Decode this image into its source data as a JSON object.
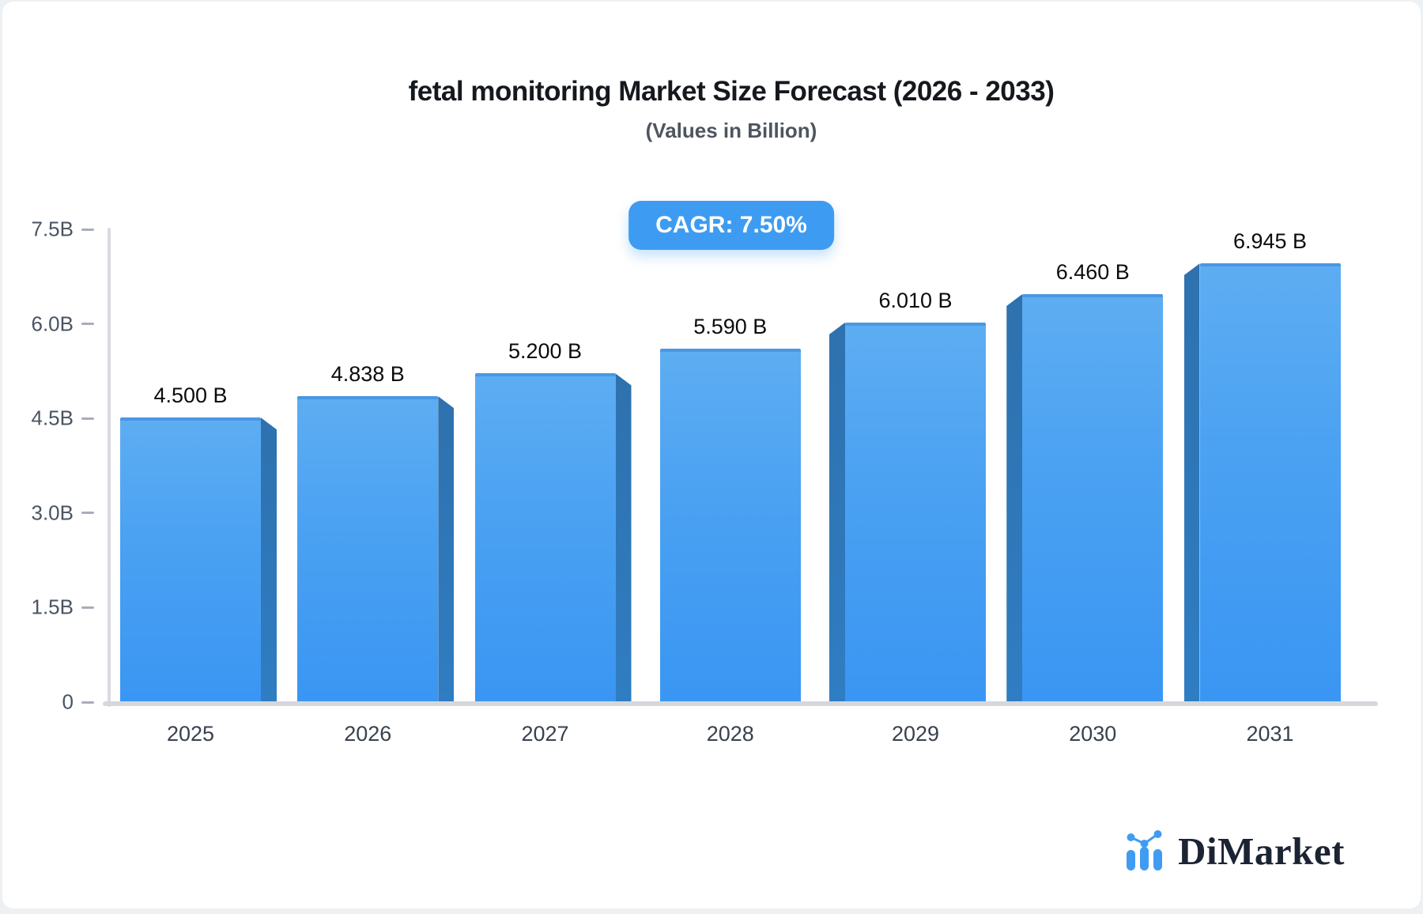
{
  "header": {
    "title": "fetal monitoring Market Size Forecast (2026 - 2033)",
    "subtitle": "(Values in Billion)"
  },
  "badge": {
    "label": "CAGR: 7.50%",
    "color": "#3d9cf1"
  },
  "chart_data": {
    "type": "bar",
    "title": "fetal monitoring Market Size Forecast (2026 - 2033)",
    "subtitle": "(Values in Billion)",
    "cagr_label": "CAGR: 7.50%",
    "categories": [
      "2025",
      "2026",
      "2027",
      "2028",
      "2029",
      "2030",
      "2031"
    ],
    "values": [
      4.5,
      4.838,
      5.2,
      5.59,
      6.01,
      6.46,
      6.945
    ],
    "value_labels": [
      "4.500 B",
      "4.838 B",
      "5.200 B",
      "5.590 B",
      "6.010 B",
      "6.460 B",
      "6.945 B"
    ],
    "unit": "Billion",
    "xlabel": "",
    "ylabel": "",
    "ylim": [
      0,
      7.5
    ],
    "yticks": {
      "labels": [
        "7.5B",
        "6.0B",
        "4.5B",
        "3.0B",
        "1.5B",
        "0"
      ],
      "values": [
        7.5,
        6.0,
        4.5,
        3.0,
        1.5,
        0
      ]
    },
    "grid": false,
    "legend": false,
    "colors": {
      "bar_top": "#5dadf2",
      "bar_bottom": "#3a96f3",
      "bar_side": "#2e74b4",
      "axis": "#d5d8dd",
      "accent": "#3d9cf1"
    }
  },
  "logo": {
    "text": "DiMarket",
    "icon": "mini-bar-chart-icon",
    "icon_color": "#409cf3",
    "text_color": "#1c2433"
  }
}
